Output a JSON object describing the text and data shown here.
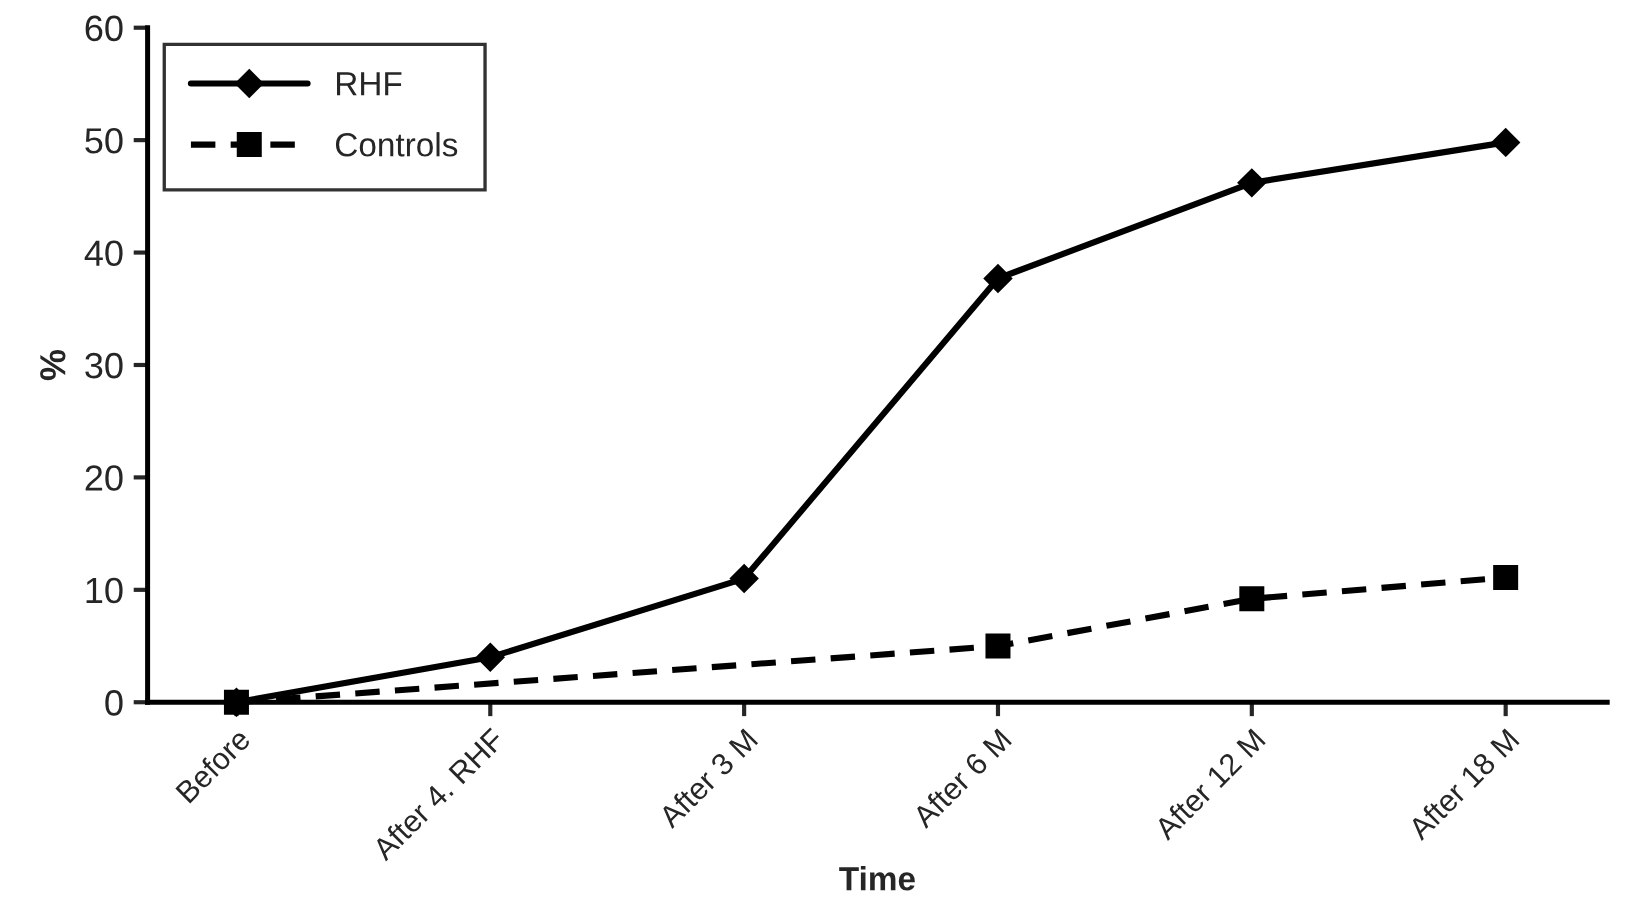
{
  "chart_data": {
    "type": "line",
    "xlabel": "Time",
    "ylabel": "%",
    "categories": [
      "Before",
      "After 4. RHF",
      "After 3 M",
      "After 6 M",
      "After 12 M",
      "After 18 M"
    ],
    "series": [
      {
        "name": "RHF",
        "color": "#000000",
        "values": [
          0,
          4,
          11,
          37.7,
          46.2,
          49.8
        ],
        "marker": "diamond",
        "line_style": "solid"
      },
      {
        "name": "Controls",
        "color": "#000000",
        "values": [
          0,
          null,
          null,
          5,
          9.2,
          11.1
        ],
        "marker": "square",
        "line_style": "dashed"
      }
    ],
    "ylim": [
      0,
      60
    ],
    "yticks": [
      0,
      10,
      20,
      30,
      40,
      50,
      60
    ],
    "grid": false,
    "legend": "top left"
  }
}
